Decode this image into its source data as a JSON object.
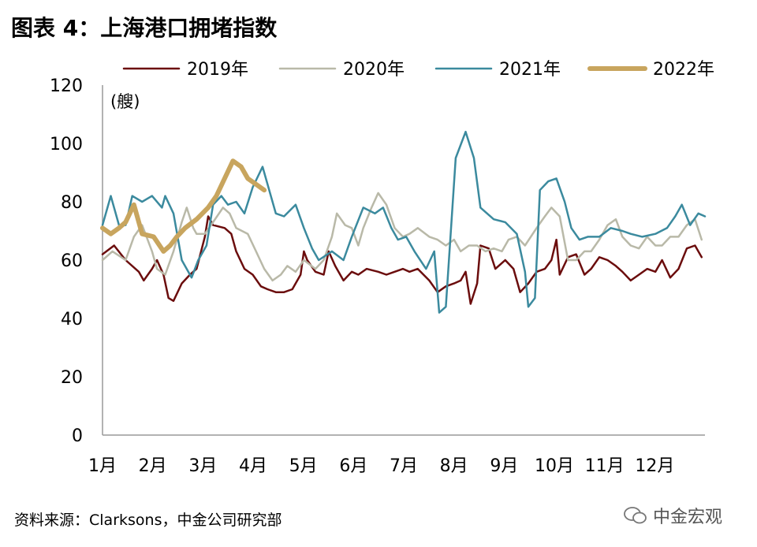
{
  "title": "图表 4：上海港口拥堵指数",
  "source": "资料来源：Clarksons，中金公司研究部",
  "watermark": "中金宏观",
  "chart_data": {
    "type": "line",
    "title": "图表 4：上海港口拥堵指数",
    "ylabel": "(艘)",
    "xlabel": "",
    "x_unit": "day of year",
    "xlim": [
      0,
      365
    ],
    "ylim": [
      0,
      120
    ],
    "yticks": [
      "0",
      "20",
      "40",
      "60",
      "80",
      "100",
      "120"
    ],
    "ytick_values": [
      0,
      20,
      40,
      60,
      80,
      100,
      120
    ],
    "xticks": [
      "1月",
      "2月",
      "3月",
      "4月",
      "5月",
      "6月",
      "7月",
      "8月",
      "9月",
      "10月",
      "11月",
      "12月"
    ],
    "grid": false,
    "legend_position": "top",
    "series": [
      {
        "name": "2019年",
        "color": "#6b0d0d",
        "width": 2.5,
        "points": [
          [
            0,
            62
          ],
          [
            7,
            65
          ],
          [
            14,
            60
          ],
          [
            22,
            56
          ],
          [
            25,
            53
          ],
          [
            30,
            57
          ],
          [
            33,
            60
          ],
          [
            37,
            55
          ],
          [
            40,
            47
          ],
          [
            43,
            46
          ],
          [
            48,
            52
          ],
          [
            53,
            55
          ],
          [
            57,
            57
          ],
          [
            62,
            68
          ],
          [
            64,
            75
          ],
          [
            67,
            72
          ],
          [
            74,
            71
          ],
          [
            78,
            69
          ],
          [
            81,
            63
          ],
          [
            86,
            57
          ],
          [
            91,
            55
          ],
          [
            96,
            51
          ],
          [
            100,
            50
          ],
          [
            105,
            49
          ],
          [
            110,
            49
          ],
          [
            115,
            50
          ],
          [
            120,
            55
          ],
          [
            122,
            63
          ],
          [
            124,
            60
          ],
          [
            129,
            56
          ],
          [
            134,
            55
          ],
          [
            137,
            63
          ],
          [
            141,
            58
          ],
          [
            146,
            53
          ],
          [
            151,
            56
          ],
          [
            155,
            55
          ],
          [
            160,
            57
          ],
          [
            167,
            56
          ],
          [
            172,
            55
          ],
          [
            177,
            56
          ],
          [
            182,
            57
          ],
          [
            186,
            56
          ],
          [
            191,
            57
          ],
          [
            198,
            53
          ],
          [
            203,
            49
          ],
          [
            208,
            51
          ],
          [
            213,
            52
          ],
          [
            217,
            53
          ],
          [
            220,
            56
          ],
          [
            223,
            45
          ],
          [
            227,
            52
          ],
          [
            229,
            65
          ],
          [
            234,
            64
          ],
          [
            238,
            57
          ],
          [
            244,
            60
          ],
          [
            249,
            57
          ],
          [
            253,
            49
          ],
          [
            258,
            52
          ],
          [
            263,
            56
          ],
          [
            268,
            57
          ],
          [
            272,
            60
          ],
          [
            275,
            67
          ],
          [
            277,
            55
          ],
          [
            282,
            61
          ],
          [
            287,
            62
          ],
          [
            292,
            55
          ],
          [
            296,
            57
          ],
          [
            301,
            61
          ],
          [
            306,
            60
          ],
          [
            311,
            58
          ],
          [
            315,
            56
          ],
          [
            320,
            53
          ],
          [
            325,
            55
          ],
          [
            330,
            57
          ],
          [
            335,
            56
          ],
          [
            339,
            60
          ],
          [
            344,
            54
          ],
          [
            349,
            57
          ],
          [
            354,
            64
          ],
          [
            359,
            65
          ],
          [
            363,
            61
          ]
        ]
      },
      {
        "name": "2020年",
        "color": "#b9b9a8",
        "width": 2.5,
        "points": [
          [
            0,
            60
          ],
          [
            6,
            63
          ],
          [
            14,
            60
          ],
          [
            19,
            68
          ],
          [
            24,
            72
          ],
          [
            30,
            63
          ],
          [
            33,
            57
          ],
          [
            38,
            55
          ],
          [
            43,
            63
          ],
          [
            48,
            73
          ],
          [
            51,
            78
          ],
          [
            55,
            71
          ],
          [
            57,
            69
          ],
          [
            62,
            69
          ],
          [
            67,
            73
          ],
          [
            73,
            78
          ],
          [
            77,
            76
          ],
          [
            81,
            71
          ],
          [
            88,
            69
          ],
          [
            93,
            63
          ],
          [
            98,
            57
          ],
          [
            103,
            53
          ],
          [
            108,
            55
          ],
          [
            112,
            58
          ],
          [
            117,
            56
          ],
          [
            122,
            60
          ],
          [
            129,
            57
          ],
          [
            134,
            60
          ],
          [
            139,
            68
          ],
          [
            142,
            76
          ],
          [
            147,
            72
          ],
          [
            151,
            71
          ],
          [
            155,
            65
          ],
          [
            158,
            71
          ],
          [
            163,
            78
          ],
          [
            167,
            83
          ],
          [
            172,
            79
          ],
          [
            177,
            71
          ],
          [
            182,
            68
          ],
          [
            186,
            69
          ],
          [
            191,
            71
          ],
          [
            198,
            68
          ],
          [
            203,
            67
          ],
          [
            208,
            65
          ],
          [
            213,
            67
          ],
          [
            217,
            63
          ],
          [
            222,
            65
          ],
          [
            227,
            65
          ],
          [
            232,
            63
          ],
          [
            237,
            64
          ],
          [
            242,
            63
          ],
          [
            246,
            67
          ],
          [
            251,
            68
          ],
          [
            256,
            65
          ],
          [
            263,
            71
          ],
          [
            268,
            75
          ],
          [
            272,
            78
          ],
          [
            277,
            75
          ],
          [
            282,
            60
          ],
          [
            287,
            60
          ],
          [
            292,
            63
          ],
          [
            296,
            63
          ],
          [
            301,
            67
          ],
          [
            306,
            72
          ],
          [
            311,
            74
          ],
          [
            315,
            68
          ],
          [
            320,
            65
          ],
          [
            325,
            64
          ],
          [
            330,
            68
          ],
          [
            335,
            65
          ],
          [
            339,
            65
          ],
          [
            344,
            68
          ],
          [
            349,
            68
          ],
          [
            354,
            72
          ],
          [
            359,
            74
          ],
          [
            363,
            67
          ]
        ]
      },
      {
        "name": "2021年",
        "color": "#3b8a9e",
        "width": 2.5,
        "points": [
          [
            0,
            72
          ],
          [
            5,
            82
          ],
          [
            10,
            72
          ],
          [
            14,
            72
          ],
          [
            18,
            82
          ],
          [
            24,
            80
          ],
          [
            30,
            82
          ],
          [
            36,
            78
          ],
          [
            38,
            82
          ],
          [
            43,
            76
          ],
          [
            48,
            60
          ],
          [
            54,
            54
          ],
          [
            58,
            60
          ],
          [
            63,
            65
          ],
          [
            67,
            79
          ],
          [
            72,
            82
          ],
          [
            76,
            79
          ],
          [
            81,
            80
          ],
          [
            86,
            76
          ],
          [
            91,
            85
          ],
          [
            97,
            92
          ],
          [
            100,
            86
          ],
          [
            105,
            76
          ],
          [
            110,
            75
          ],
          [
            117,
            79
          ],
          [
            122,
            71
          ],
          [
            127,
            64
          ],
          [
            131,
            60
          ],
          [
            139,
            63
          ],
          [
            146,
            60
          ],
          [
            151,
            68
          ],
          [
            158,
            78
          ],
          [
            165,
            76
          ],
          [
            170,
            78
          ],
          [
            175,
            71
          ],
          [
            179,
            67
          ],
          [
            184,
            68
          ],
          [
            189,
            63
          ],
          [
            196,
            57
          ],
          [
            201,
            63
          ],
          [
            204,
            42
          ],
          [
            208,
            44
          ],
          [
            214,
            95
          ],
          [
            220,
            104
          ],
          [
            225,
            95
          ],
          [
            229,
            78
          ],
          [
            237,
            74
          ],
          [
            244,
            73
          ],
          [
            251,
            69
          ],
          [
            256,
            56
          ],
          [
            258,
            44
          ],
          [
            262,
            47
          ],
          [
            265,
            84
          ],
          [
            270,
            87
          ],
          [
            275,
            88
          ],
          [
            280,
            80
          ],
          [
            284,
            71
          ],
          [
            289,
            67
          ],
          [
            294,
            68
          ],
          [
            301,
            68
          ],
          [
            308,
            71
          ],
          [
            315,
            70
          ],
          [
            320,
            69
          ],
          [
            327,
            68
          ],
          [
            335,
            69
          ],
          [
            342,
            71
          ],
          [
            347,
            75
          ],
          [
            351,
            79
          ],
          [
            356,
            72
          ],
          [
            361,
            76
          ],
          [
            365,
            75
          ]
        ]
      },
      {
        "name": "2022年",
        "color": "#c8a55e",
        "width": 6,
        "points": [
          [
            0,
            71
          ],
          [
            5,
            69
          ],
          [
            10,
            71
          ],
          [
            14,
            73
          ],
          [
            19,
            79
          ],
          [
            24,
            69
          ],
          [
            31,
            68
          ],
          [
            37,
            63
          ],
          [
            41,
            65
          ],
          [
            45,
            68
          ],
          [
            50,
            71
          ],
          [
            57,
            74
          ],
          [
            64,
            78
          ],
          [
            69,
            82
          ],
          [
            74,
            88
          ],
          [
            79,
            94
          ],
          [
            84,
            92
          ],
          [
            88,
            88
          ],
          [
            93,
            86
          ],
          [
            98,
            84
          ]
        ]
      }
    ]
  }
}
